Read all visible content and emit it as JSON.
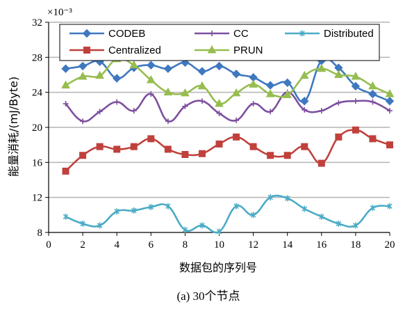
{
  "chart_data": {
    "type": "line",
    "scale_label": "×10⁻³",
    "xlabel": "数据包的序列号",
    "ylabel": "能量消耗/(mJ/Byte)",
    "caption": "(a)  30个节点",
    "xlim": [
      0,
      20
    ],
    "ylim": [
      8,
      32
    ],
    "xticks": [
      0,
      2,
      4,
      6,
      8,
      10,
      12,
      14,
      16,
      18,
      20
    ],
    "yticks": [
      8,
      12,
      16,
      20,
      24,
      28,
      32
    ],
    "grid": "horizontal",
    "legend_position": "top",
    "x": [
      1,
      2,
      3,
      4,
      5,
      6,
      7,
      8,
      9,
      10,
      11,
      12,
      13,
      14,
      15,
      16,
      17,
      18,
      19,
      20
    ],
    "series": [
      {
        "name": "CODEB",
        "color": "#3f78bf",
        "marker": "diamond",
        "values": [
          26.7,
          27.0,
          27.5,
          25.6,
          26.8,
          27.1,
          26.7,
          27.4,
          26.4,
          27.0,
          26.1,
          25.7,
          24.8,
          25.1,
          23.0,
          27.6,
          26.8,
          24.7,
          23.8,
          23.0
        ]
      },
      {
        "name": "CC",
        "color": "#7d4f9e",
        "marker": "plus",
        "values": [
          22.7,
          20.7,
          21.8,
          22.9,
          21.9,
          23.8,
          20.7,
          22.4,
          23.0,
          21.6,
          20.8,
          22.7,
          21.8,
          24.0,
          22.0,
          21.9,
          22.8,
          23.0,
          22.9,
          21.9
        ]
      },
      {
        "name": "Distributed",
        "color": "#4aabc6",
        "marker": "asterisk",
        "values": [
          9.8,
          9.0,
          8.8,
          10.4,
          10.5,
          10.9,
          11.0,
          8.3,
          8.8,
          8.1,
          11.0,
          10.0,
          12.0,
          11.9,
          10.7,
          9.8,
          9.0,
          8.8,
          10.8,
          11.0
        ]
      },
      {
        "name": "Centralized",
        "color": "#c0413c",
        "marker": "square",
        "values": [
          15.0,
          16.8,
          17.8,
          17.5,
          17.8,
          18.7,
          17.5,
          16.9,
          17.0,
          18.1,
          18.9,
          17.8,
          16.8,
          16.8,
          17.8,
          15.9,
          18.9,
          19.7,
          18.7,
          18.0
        ]
      },
      {
        "name": "PRUN",
        "color": "#96bd4f",
        "marker": "triangle",
        "values": [
          24.8,
          25.8,
          25.9,
          27.8,
          27.1,
          25.4,
          24.0,
          23.9,
          24.7,
          22.7,
          23.9,
          24.9,
          23.8,
          23.7,
          25.9,
          26.7,
          26.0,
          25.8,
          24.7,
          23.8
        ]
      }
    ],
    "legend": {
      "rows": [
        [
          "CODEB",
          "CC",
          "Distributed"
        ],
        [
          "Centralized",
          "PRUN"
        ]
      ]
    }
  }
}
